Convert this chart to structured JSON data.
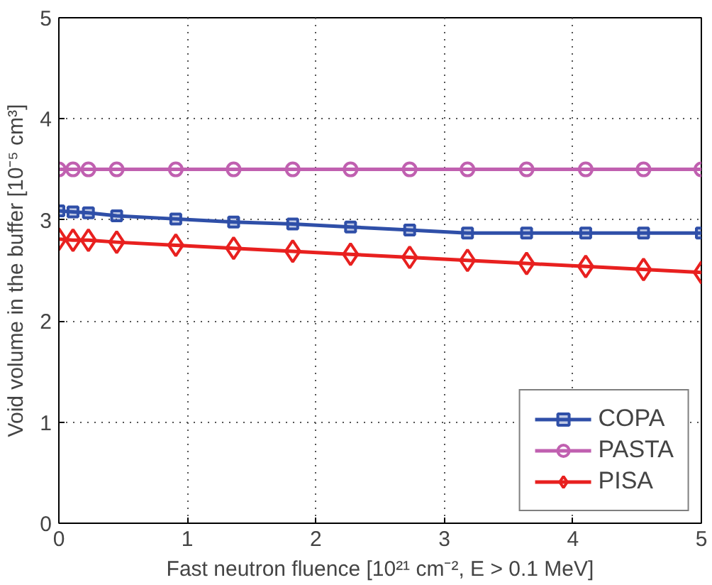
{
  "chart_data": {
    "type": "line",
    "xlabel": "Fast neutron fluence [10²¹ cm⁻², E > 0.1 MeV]",
    "ylabel": "Void volume in the buffer [10⁻⁵ cm³]",
    "x": [
      0,
      0.11,
      0.23,
      0.45,
      0.91,
      1.36,
      1.82,
      2.27,
      2.73,
      3.18,
      3.64,
      4.1,
      4.55,
      5.0
    ],
    "series": [
      {
        "name": "COPA",
        "color": "#2f4fa8",
        "marker": "square",
        "values": [
          3.09,
          3.08,
          3.07,
          3.04,
          3.01,
          2.98,
          2.96,
          2.93,
          2.9,
          2.87,
          2.87,
          2.87,
          2.87,
          2.87
        ]
      },
      {
        "name": "PASTA",
        "color": "#c060b0",
        "marker": "circle",
        "values": [
          3.5,
          3.5,
          3.5,
          3.5,
          3.5,
          3.5,
          3.5,
          3.5,
          3.5,
          3.5,
          3.5,
          3.5,
          3.5,
          3.5
        ]
      },
      {
        "name": "PISA",
        "color": "#e8201f",
        "marker": "diamond",
        "values": [
          2.81,
          2.8,
          2.8,
          2.78,
          2.75,
          2.72,
          2.69,
          2.66,
          2.63,
          2.6,
          2.57,
          2.54,
          2.51,
          2.48
        ]
      }
    ],
    "xlim": [
      0,
      5
    ],
    "ylim": [
      0,
      5
    ],
    "xticks": [
      0,
      1,
      2,
      3,
      4,
      5
    ],
    "yticks": [
      0,
      1,
      2,
      3,
      4,
      5
    ],
    "grid": true,
    "legend": "bottom right",
    "line_style": "solid"
  }
}
